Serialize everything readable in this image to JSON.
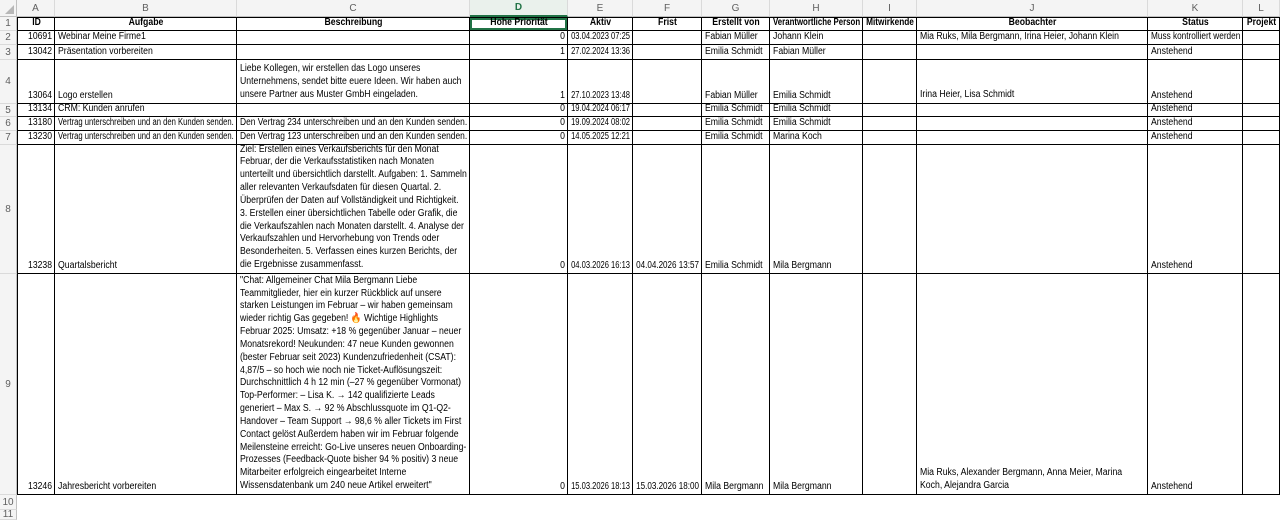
{
  "sheet": {
    "app": "spreadsheet-grid",
    "selected_cell": "D1",
    "selected_column": "D",
    "colors": {
      "accent_green": "#217346",
      "grid_border": "#000000",
      "header_strip_bg": "#f4f4f4",
      "selected_header_bg": "#eaf1ec",
      "cell_bg": "#ffffff"
    },
    "column_letters": [
      "A",
      "B",
      "C",
      "D",
      "E",
      "F",
      "G",
      "H",
      "I",
      "J",
      "K",
      "L"
    ],
    "row_numbers": [
      "1",
      "2",
      "3",
      "4",
      "5",
      "6",
      "7",
      "8",
      "9",
      "10",
      "11"
    ],
    "table": {
      "headers": [
        "ID",
        "Aufgabe",
        "Beschreibung",
        "Hohe Priorität",
        "Aktiv",
        "Frist",
        "Erstellt von",
        "Verantwortliche Person",
        "Mitwirkende",
        "Beobachter",
        "Status",
        "Projekt"
      ],
      "rows": [
        [
          "10691",
          "Webinar Meine Firme1",
          "",
          "0",
          "03.04.2023 07:25",
          "",
          "Fabian Müller",
          "Johann Klein",
          "",
          "Mia Ruks, Mila Bergmann, Irina Heier, Johann Klein",
          "Muss kontrolliert werden",
          ""
        ],
        [
          "13042",
          "Präsentation vorbereiten",
          "",
          "1",
          "27.02.2024 13:36",
          "",
          "Emilia Schmidt",
          "Fabian Müller",
          "",
          "",
          "Anstehend",
          ""
        ],
        [
          "13064",
          "Logo erstellen",
          "Liebe Kollegen, wir erstellen das Logo unseres Unternehmens, sendet bitte euere Ideen. Wir haben auch unsere Partner aus Muster GmbH eingeladen.",
          "1",
          "27.10.2023 13:48",
          "",
          "Fabian Müller",
          "Emilia Schmidt",
          "",
          "Irina Heier, Lisa Schmidt",
          "Anstehend",
          ""
        ],
        [
          "13134",
          "CRM: Kunden anrufen",
          "",
          "0",
          "19.04.2024 06:17",
          "",
          "Emilia Schmidt",
          "Emilia Schmidt",
          "",
          "",
          "Anstehend",
          ""
        ],
        [
          "13180",
          "Vertrag unterschreiben und an den Kunden senden.",
          "Den Vertrag 234 unterschreiben und an den Kunden senden.",
          "0",
          "19.09.2024 08:02",
          "",
          "Emilia Schmidt",
          "Emilia Schmidt",
          "",
          "",
          "Anstehend",
          ""
        ],
        [
          "13230",
          "Vertrag unterschreiben und an den Kunden senden.",
          "Den Vertrag 123 unterschreiben und an den Kunden senden.",
          "0",
          "14.05.2025 12:21",
          "",
          "Emilia Schmidt",
          "Marina Koch",
          "",
          "",
          "Anstehend",
          ""
        ],
        [
          "13238",
          "Quartalsbericht",
          "Ziel: Erstellen eines Verkaufsberichts für den Monat Februar, der die Verkaufsstatistiken nach Monaten unterteilt und übersichtlich darstellt. Aufgaben: 1. Sammeln aller relevanten Verkaufsdaten für diesen Quartal. 2. Überprüfen der Daten auf Vollständigkeit und Richtigkeit. 3. Erstellen einer übersichtlichen Tabelle oder Grafik, die die Verkaufszahlen nach Monaten darstellt. 4. Analyse der Verkaufszahlen und Hervorhebung von Trends oder Besonderheiten. 5. Verfassen eines kurzen Berichts, der die Ergebnisse zusammenfasst.",
          "0",
          "04.03.2026 16:13",
          "04.04.2026 13:57",
          "Emilia Schmidt",
          "Mila Bergmann",
          "",
          "",
          "Anstehend",
          ""
        ],
        [
          "13246",
          "Jahresbericht vorbereiten",
          "\"Chat: Allgemeiner Chat Mila Bergmann Liebe Teammitglieder, hier ein kurzer Rückblick auf unsere starken Leistungen im Februar – wir haben gemeinsam wieder richtig Gas gegeben! 🔥 Wichtige Highlights Februar 2025: Umsatz: +18 % gegenüber Januar – neuer Monatsrekord! Neukunden: 47 neue Kunden gewonnen (bester Februar seit 2023) Kundenzufriedenheit (CSAT): 4,87/5 – so hoch wie noch nie Ticket-Auflösungszeit: Durchschnittlich 4 h 12 min (–27 % gegenüber Vormonat) Top-Performer: – Lisa K. → 142 qualifizierte Leads generiert – Max S. → 92 % Abschlussquote im Q1-Q2-Handover – Team Support → 98,6 % aller Tickets im First Contact gelöst Außerdem haben wir im Februar folgende Meilensteine erreicht: Go-Live unseres neuen Onboarding-Prozesses (Feedback-Quote bisher 94 % positiv) 3 neue Mitarbeiter erfolgreich eingearbeitet Interne Wissensdatenbank um 240 neue Artikel erweitert\"",
          "0",
          "15.03.2026 18:13",
          "15.03.2026 18:00",
          "Mila Bergmann",
          "Mila Bergmann",
          "",
          "Mia Ruks, Alexander Bergmann, Anna Meier, Marina Koch, Alejandra Garcia",
          "Anstehend",
          ""
        ]
      ]
    }
  }
}
